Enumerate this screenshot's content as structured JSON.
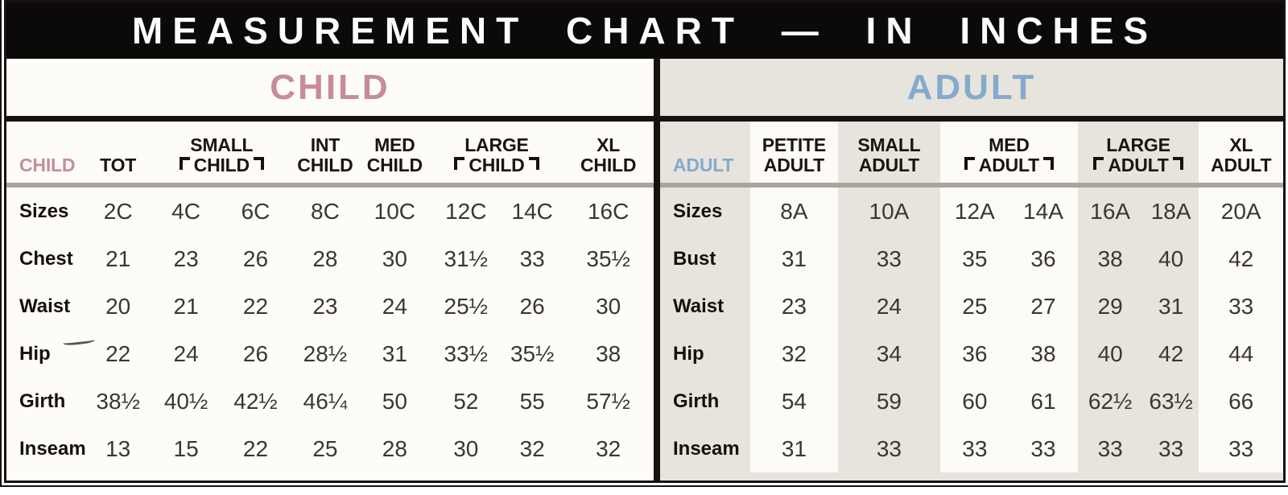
{
  "title": "MEASUREMENT CHART — IN INCHES",
  "theme": {
    "child_accent": "#c68d98",
    "adult_accent": "#85aacd",
    "band_gray": "#e7e4dd",
    "frame_black": "#17110f"
  },
  "child": {
    "banner": "CHILD",
    "header_label": "CHILD",
    "columns": [
      {
        "top": "",
        "bottom": "TOT"
      },
      {
        "top": "SMALL",
        "bottom": "CHILD",
        "grouped": true
      },
      {
        "top": "INT",
        "bottom": "CHILD"
      },
      {
        "top": "MED",
        "bottom": "CHILD"
      },
      {
        "top": "LARGE",
        "bottom": "CHILD",
        "grouped": true
      },
      {
        "top": "XL",
        "bottom": "CHILD"
      }
    ],
    "rows": [
      {
        "label": "Sizes",
        "values": [
          "2C",
          "4C",
          "6C",
          "8C",
          "10C",
          "12C",
          "14C",
          "16C"
        ]
      },
      {
        "label": "Chest",
        "values": [
          "21",
          "23",
          "26",
          "28",
          "30",
          "31½",
          "33",
          "35½"
        ]
      },
      {
        "label": "Waist",
        "values": [
          "20",
          "21",
          "22",
          "23",
          "24",
          "25½",
          "26",
          "30"
        ]
      },
      {
        "label": "Hip",
        "values": [
          "22",
          "24",
          "26",
          "28½",
          "31",
          "33½",
          "35½",
          "38"
        ]
      },
      {
        "label": "Girth",
        "values": [
          "38½",
          "40½",
          "42½",
          "46¼",
          "50",
          "52",
          "55",
          "57½"
        ]
      },
      {
        "label": "Inseam",
        "values": [
          "13",
          "15",
          "22",
          "25",
          "28",
          "30",
          "32",
          "32"
        ]
      }
    ]
  },
  "adult": {
    "banner": "ADULT",
    "header_label": "ADULT",
    "columns": [
      {
        "top": "PETITE",
        "bottom": "ADULT"
      },
      {
        "top": "SMALL",
        "bottom": "ADULT"
      },
      {
        "top": "MED",
        "bottom": "ADULT",
        "grouped": true
      },
      {
        "top": "LARGE",
        "bottom": "ADULT",
        "grouped": true
      },
      {
        "top": "XL",
        "bottom": "ADULT"
      }
    ],
    "rows": [
      {
        "label": "Sizes",
        "values": [
          "8A",
          "10A",
          "12A",
          "14A",
          "16A",
          "18A",
          "20A"
        ]
      },
      {
        "label": "Bust",
        "values": [
          "31",
          "33",
          "35",
          "36",
          "38",
          "40",
          "42"
        ]
      },
      {
        "label": "Waist",
        "values": [
          "23",
          "24",
          "25",
          "27",
          "29",
          "31",
          "33"
        ]
      },
      {
        "label": "Hip",
        "values": [
          "32",
          "34",
          "36",
          "38",
          "40",
          "42",
          "44"
        ]
      },
      {
        "label": "Girth",
        "values": [
          "54",
          "59",
          "60",
          "61",
          "62½",
          "63½",
          "66"
        ]
      },
      {
        "label": "Inseam",
        "values": [
          "31",
          "33",
          "33",
          "33",
          "33",
          "33",
          "33"
        ]
      }
    ]
  }
}
